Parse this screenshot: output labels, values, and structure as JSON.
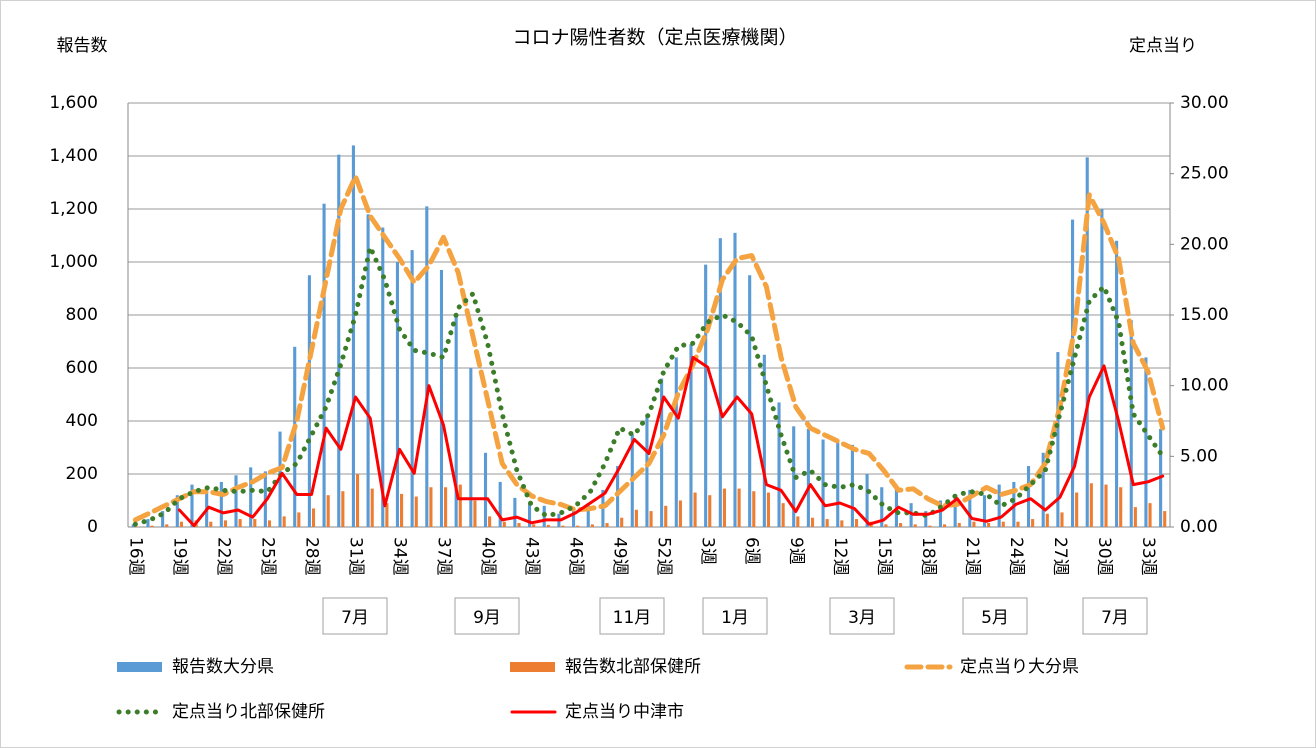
{
  "chart_data": {
    "type": "bar_line",
    "title": "コロナ陽性者数（定点医療機関）",
    "y_label": "報告数",
    "y2_label": "定点当り",
    "categories": [
      "16週",
      null,
      null,
      "19週",
      null,
      null,
      "22週",
      null,
      null,
      "25週",
      null,
      null,
      "28週",
      null,
      null,
      "31週",
      null,
      null,
      "34週",
      null,
      null,
      "37週",
      null,
      null,
      "40週",
      null,
      null,
      "43週",
      null,
      null,
      "46週",
      null,
      null,
      "49週",
      null,
      null,
      "52週",
      null,
      null,
      "3週",
      null,
      null,
      "6週",
      null,
      null,
      "9週",
      null,
      null,
      "12週",
      null,
      null,
      "15週",
      null,
      null,
      "18週",
      null,
      null,
      "21週",
      null,
      null,
      "24週",
      null,
      null,
      "27週",
      null,
      null,
      "30週",
      null,
      null,
      "33週",
      null
    ],
    "ylim": [
      0,
      1600
    ],
    "yticks": [
      0,
      200,
      400,
      600,
      800,
      {
        "value": 1000,
        "label": "1,000"
      },
      {
        "value": 1200,
        "label": "1,200"
      },
      {
        "value": 1400,
        "label": "1,400"
      },
      {
        "value": 1600,
        "label": "1,600"
      }
    ],
    "y2lim": [
      0,
      30
    ],
    "y2ticks": [
      {
        "value": 0,
        "label": "0.00"
      },
      {
        "value": 5,
        "label": "5.00"
      },
      {
        "value": 10,
        "label": "10.00"
      },
      {
        "value": 15,
        "label": "15.00"
      },
      {
        "value": 20,
        "label": "20.00"
      },
      {
        "value": 25,
        "label": "25.00"
      },
      {
        "value": 30,
        "label": "30.00"
      }
    ],
    "grid": true,
    "annotations": [
      "7月",
      "9月",
      "11月",
      "1月",
      "3月",
      "5月",
      "7月"
    ],
    "series": [
      {
        "name": "報告数大分県",
        "kind": "bar",
        "color": "#5b9bd5",
        "values": [
          10,
          30,
          60,
          120,
          160,
          140,
          170,
          195,
          225,
          210,
          360,
          680,
          950,
          1220,
          1405,
          1440,
          1180,
          1130,
          1000,
          1045,
          1210,
          970,
          800,
          600,
          280,
          170,
          110,
          90,
          80,
          50,
          60,
          90,
          140,
          230,
          350,
          420,
          560,
          640,
          690,
          990,
          1090,
          1110,
          950,
          650,
          470,
          380,
          370,
          330,
          320,
          310,
          200,
          150,
          150,
          90,
          60,
          100,
          120,
          140,
          120,
          160,
          170,
          230,
          280,
          660,
          1160,
          1395,
          1200,
          1080,
          780,
          640,
          370
        ]
      },
      {
        "name": "報告数北部保健所",
        "kind": "bar",
        "color": "#ed7d31",
        "values": [
          2,
          5,
          10,
          20,
          25,
          20,
          25,
          30,
          30,
          25,
          40,
          55,
          70,
          120,
          135,
          200,
          145,
          90,
          125,
          115,
          150,
          150,
          160,
          100,
          40,
          20,
          15,
          10,
          8,
          5,
          5,
          10,
          15,
          35,
          65,
          60,
          80,
          100,
          130,
          120,
          145,
          145,
          135,
          130,
          90,
          40,
          35,
          30,
          25,
          30,
          20,
          10,
          15,
          10,
          5,
          10,
          15,
          20,
          15,
          20,
          20,
          30,
          50,
          55,
          130,
          165,
          160,
          150,
          75,
          90,
          60
        ]
      },
      {
        "name": "定点当り大分県",
        "kind": "line",
        "dash": "dash",
        "axis": "y2",
        "color": "#f4a340",
        "values": [
          0.5,
          1.0,
          1.5,
          2.0,
          2.5,
          2.5,
          2.3,
          2.8,
          3.2,
          3.8,
          4.2,
          7.5,
          12.5,
          17.5,
          22.5,
          24.8,
          22.0,
          20.5,
          19.0,
          17.3,
          18.5,
          20.5,
          18.0,
          13.5,
          9.0,
          4.5,
          3.0,
          2.2,
          1.8,
          1.6,
          1.2,
          1.3,
          1.5,
          2.5,
          3.5,
          4.5,
          6.5,
          9.5,
          11.5,
          14.0,
          17.5,
          19.0,
          19.2,
          17.0,
          12.0,
          8.5,
          7.0,
          6.5,
          6.0,
          5.5,
          5.2,
          4.0,
          2.6,
          2.7,
          2.0,
          1.5,
          1.6,
          2.2,
          2.8,
          2.3,
          2.6,
          3.0,
          4.5,
          8.5,
          14.0,
          23.5,
          21.5,
          19.0,
          13.0,
          11.0,
          7.0
        ]
      },
      {
        "name": "定点当り北部保健所",
        "kind": "line",
        "dash": "dot",
        "axis": "y2",
        "color": "#3c7d2a",
        "values": [
          0.2,
          0.5,
          1.0,
          2.0,
          2.5,
          2.8,
          2.6,
          2.5,
          2.6,
          2.5,
          3.8,
          4.5,
          6.5,
          8.5,
          11.5,
          15.0,
          19.8,
          17.5,
          14.0,
          12.5,
          12.3,
          12.0,
          15.5,
          16.5,
          13.0,
          8.0,
          4.0,
          1.5,
          0.8,
          1.0,
          1.5,
          2.5,
          4.5,
          7.0,
          6.5,
          8.0,
          11.0,
          12.8,
          13.0,
          14.5,
          15.0,
          14.5,
          13.5,
          10.0,
          6.5,
          3.5,
          4.0,
          3.0,
          2.8,
          3.0,
          2.5,
          1.5,
          1.0,
          1.0,
          0.8,
          1.5,
          2.3,
          2.5,
          2.3,
          1.5,
          2.0,
          3.0,
          4.0,
          8.0,
          12.0,
          16.0,
          17.0,
          14.5,
          8.0,
          6.5,
          5.0
        ]
      },
      {
        "name": "定点当り中津市",
        "kind": "line",
        "dash": "solid",
        "axis": "y2",
        "color": "#ff0000",
        "values": [
          null,
          null,
          null,
          1.2,
          0.1,
          1.4,
          1.0,
          1.2,
          0.7,
          2.0,
          3.8,
          2.3,
          2.3,
          7.0,
          5.5,
          9.2,
          7.7,
          1.5,
          5.5,
          3.8,
          10.0,
          7.2,
          2.0,
          2.0,
          2.0,
          0.5,
          0.7,
          0.3,
          0.5,
          0.5,
          1.0,
          1.7,
          2.4,
          4.2,
          6.2,
          5.2,
          9.2,
          7.7,
          12.0,
          11.3,
          7.8,
          9.2,
          8.0,
          3.0,
          2.6,
          1.1,
          3.0,
          1.5,
          1.7,
          1.3,
          0.2,
          0.5,
          1.4,
          0.9,
          0.9,
          1.2,
          2.0,
          0.6,
          0.4,
          0.7,
          1.6,
          2.0,
          1.2,
          2.1,
          4.3,
          9.2,
          11.4,
          7.5,
          3.0,
          3.2,
          3.6
        ]
      }
    ]
  }
}
